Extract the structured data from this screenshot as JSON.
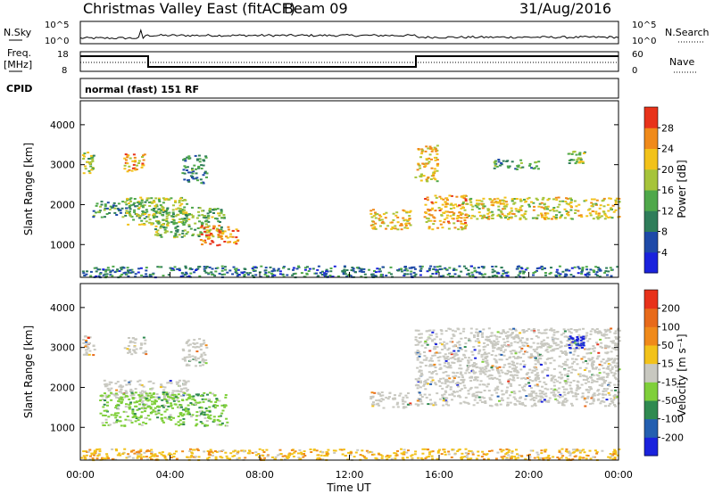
{
  "header": {
    "title": "Christmas Valley East (fitACF)",
    "beam": "Beam 09",
    "date": "31/Aug/2016"
  },
  "noise_panel": {
    "left_label": "N.Sky",
    "right_label": "N.Search",
    "left_ticks": [
      "10^5",
      "10^0"
    ],
    "right_ticks": [
      "10^5",
      "10^0"
    ]
  },
  "freq_panel": {
    "left_label_1": "Freq.",
    "left_label_2": "[MHz]",
    "left_ticks": [
      "18",
      "8"
    ],
    "right_label": "Nave",
    "right_ticks": [
      "60",
      "0"
    ]
  },
  "cpid": {
    "label": "CPID",
    "value": "normal (fast) 151 RF"
  },
  "x_axis": {
    "label": "Time UT",
    "ticks": [
      "00:00",
      "04:00",
      "08:00",
      "12:00",
      "16:00",
      "20:00",
      "00:00"
    ]
  },
  "chart_data": [
    {
      "type": "heatmap",
      "panel": "power",
      "ylabel": "Slant Range [km]",
      "ylim": [
        180,
        4600
      ],
      "yticks": [
        "4000",
        "3000",
        "2000",
        "1000"
      ],
      "xlim_hours": [
        0,
        24
      ],
      "colorbar_label": "Power [dB]",
      "colorbar_ticks": [
        "28",
        "24",
        "20",
        "16",
        "12",
        "8",
        "4"
      ],
      "colors": [
        "#1a22dd",
        "#1f4aa8",
        "#2f7d5a",
        "#4fa84a",
        "#a6c43a",
        "#f2c21a",
        "#f08a1a",
        "#e8321a"
      ],
      "regions": [
        {
          "t": [
            0.05,
            0.6
          ],
          "range": [
            2800,
            3350
          ],
          "level": 0.55
        },
        {
          "t": [
            1.9,
            2.9
          ],
          "range": [
            2850,
            3300
          ],
          "level": 0.8
        },
        {
          "t": [
            0.5,
            3.0
          ],
          "range": [
            1700,
            2100
          ],
          "level": 0.35
        },
        {
          "t": [
            2.0,
            4.8
          ],
          "range": [
            1500,
            2200
          ],
          "level": 0.55
        },
        {
          "t": [
            3.3,
            6.4
          ],
          "range": [
            1200,
            1950
          ],
          "level": 0.45
        },
        {
          "t": [
            5.3,
            7.0
          ],
          "range": [
            1000,
            1500
          ],
          "level": 0.85
        },
        {
          "t": [
            4.5,
            5.6
          ],
          "range": [
            2550,
            3250
          ],
          "level": 0.3
        },
        {
          "t": [
            12.9,
            14.7
          ],
          "range": [
            1400,
            1900
          ],
          "level": 0.7
        },
        {
          "t": [
            14.9,
            15.9
          ],
          "range": [
            2600,
            3500
          ],
          "level": 0.7
        },
        {
          "t": [
            15.3,
            17.2
          ],
          "range": [
            1400,
            2250
          ],
          "level": 0.75
        },
        {
          "t": [
            17.0,
            24.0
          ],
          "range": [
            1650,
            2200
          ],
          "level": 0.65
        },
        {
          "t": [
            18.4,
            20.4
          ],
          "range": [
            2900,
            3150
          ],
          "level": 0.35
        },
        {
          "t": [
            21.7,
            22.5
          ],
          "range": [
            3050,
            3350
          ],
          "level": 0.5
        },
        {
          "t": [
            0.0,
            24.0
          ],
          "range": [
            200,
            480
          ],
          "level": 0.25
        }
      ]
    },
    {
      "type": "heatmap",
      "panel": "velocity",
      "ylabel": "Slant Range [km]",
      "ylim": [
        180,
        4600
      ],
      "yticks": [
        "4000",
        "3000",
        "2000",
        "1000"
      ],
      "xlim_hours": [
        0,
        24
      ],
      "colorbar_label": "Velocity [m s⁻¹]",
      "colorbar_ticks": [
        "200",
        "100",
        "50",
        "15",
        "-15",
        "-50",
        "-100",
        "-200"
      ],
      "colors": [
        "#1a22dd",
        "#245fb0",
        "#2f8a50",
        "#7fcf3a",
        "#c8c8c0",
        "#f2c21a",
        "#f08a1a",
        "#e86a1a",
        "#e8321a"
      ],
      "regions": [
        {
          "t": [
            0.05,
            0.6
          ],
          "range": [
            2800,
            3350
          ],
          "class": "ground"
        },
        {
          "t": [
            1.9,
            2.9
          ],
          "range": [
            2850,
            3300
          ],
          "class": "ground"
        },
        {
          "t": [
            1.0,
            4.8
          ],
          "range": [
            1750,
            2200
          ],
          "class": "ground"
        },
        {
          "t": [
            0.8,
            6.5
          ],
          "range": [
            1050,
            1900
          ],
          "class": "green"
        },
        {
          "t": [
            4.5,
            5.6
          ],
          "range": [
            2550,
            3250
          ],
          "class": "ground"
        },
        {
          "t": [
            12.9,
            14.7
          ],
          "range": [
            1500,
            1900
          ],
          "class": "ground"
        },
        {
          "t": [
            14.9,
            24.0
          ],
          "range": [
            1550,
            3500
          ],
          "class": "ground"
        },
        {
          "t": [
            21.7,
            22.4
          ],
          "range": [
            3000,
            3300
          ],
          "class": "blue"
        },
        {
          "t": [
            0.0,
            24.0
          ],
          "range": [
            200,
            480
          ],
          "class": "orange"
        }
      ]
    }
  ]
}
